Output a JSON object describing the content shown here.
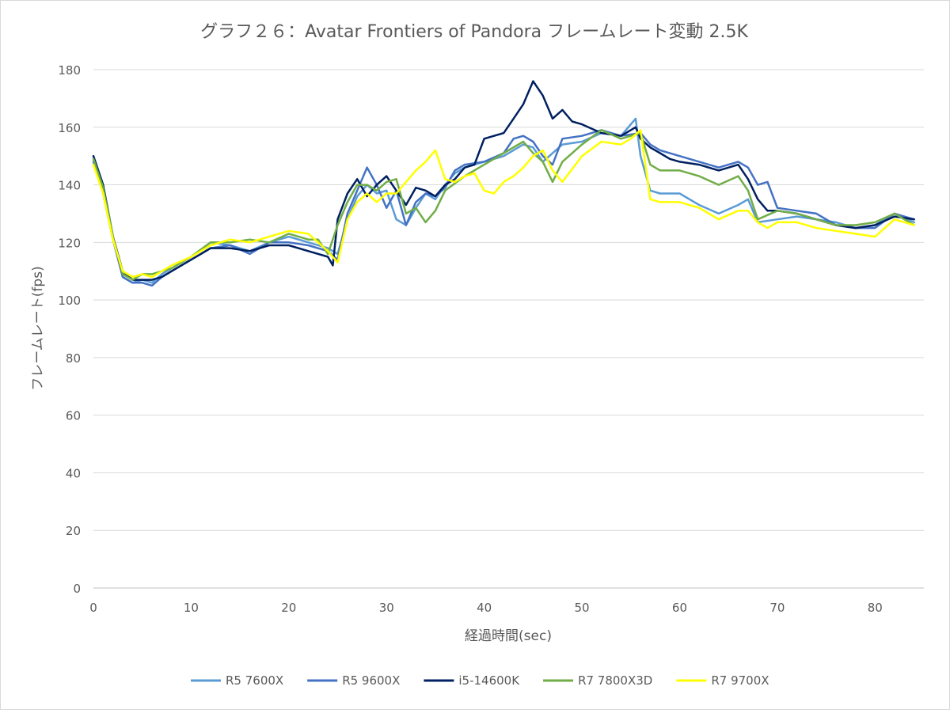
{
  "chart_data": {
    "type": "line",
    "title": "グラフ２６：Avatar Frontiers  of Pandora フレームレート変動 2.5K",
    "xlabel": "経過時間(sec)",
    "ylabel": "フレームレート(fps)",
    "xlim": [
      0,
      85
    ],
    "ylim": [
      0,
      180
    ],
    "x_ticks": [
      "0",
      "10",
      "20",
      "30",
      "40",
      "50",
      "60",
      "70",
      "80"
    ],
    "y_ticks": [
      "180",
      "160",
      "140",
      "120",
      "100",
      "80",
      "60",
      "40",
      "20",
      "0"
    ],
    "grid": true,
    "legend_position": "bottom",
    "series": [
      {
        "name": "R5 7600X",
        "color": "#5b9bd5",
        "x": [
          0,
          1,
          2,
          3,
          4,
          5,
          6,
          7,
          8,
          10,
          12,
          14,
          16,
          18,
          20,
          22,
          24,
          25,
          26,
          27,
          28,
          29,
          30,
          31,
          32,
          33,
          34,
          35,
          36,
          37,
          38,
          40,
          42,
          44,
          45,
          46,
          48,
          50,
          52,
          54,
          55.5,
          56,
          57,
          58,
          60,
          62,
          64,
          66,
          67,
          68,
          70,
          72,
          74,
          76,
          78,
          80,
          82,
          84
        ],
        "values": [
          149,
          138,
          122,
          108,
          106,
          107,
          106,
          109,
          111,
          115,
          120,
          119,
          117,
          120,
          122,
          120,
          118,
          116,
          128,
          136,
          140,
          137,
          138,
          128,
          126,
          132,
          137,
          135,
          140,
          144,
          146,
          148,
          150,
          154,
          153,
          148,
          154,
          155,
          158,
          157,
          163,
          150,
          138,
          137,
          137,
          133,
          130,
          133,
          135,
          127,
          128,
          129,
          128,
          127,
          125,
          126,
          130,
          127
        ]
      },
      {
        "name": "R5 9600X",
        "color": "#4472c4",
        "x": [
          0,
          1,
          2,
          3,
          4,
          5,
          6,
          7,
          8,
          10,
          12,
          14,
          16,
          18,
          20,
          22,
          24,
          25,
          26,
          27,
          28,
          29,
          30,
          31,
          32,
          33,
          34,
          35,
          36,
          37,
          38,
          40,
          42,
          43,
          44,
          45,
          46,
          47,
          48,
          50,
          52,
          54,
          56,
          57,
          58,
          60,
          62,
          64,
          66,
          67,
          68,
          69,
          70,
          72,
          74,
          76,
          78,
          80,
          82,
          84
        ],
        "values": [
          148,
          137,
          121,
          108,
          106,
          106,
          105,
          108,
          110,
          114,
          118,
          119,
          116,
          120,
          120,
          119,
          117,
          114,
          130,
          138,
          146,
          140,
          132,
          138,
          126,
          134,
          137,
          136,
          139,
          145,
          147,
          148,
          151,
          156,
          157,
          155,
          150,
          147,
          156,
          157,
          159,
          157,
          158,
          154,
          152,
          150,
          148,
          146,
          148,
          146,
          140,
          141,
          132,
          131,
          130,
          126,
          125,
          125,
          130,
          128
        ]
      },
      {
        "name": "i5-14600K",
        "color": "#002060",
        "x": [
          0,
          1,
          2,
          3,
          4,
          5,
          6,
          7,
          8,
          10,
          12,
          14,
          16,
          18,
          20,
          22,
          24,
          24.5,
          25,
          26,
          27,
          28,
          29,
          30,
          31,
          32,
          33,
          34,
          35,
          36,
          37,
          38,
          39,
          40,
          41,
          42,
          43,
          44,
          45,
          46,
          47,
          48,
          49,
          50,
          52,
          54,
          55.5,
          56,
          57,
          58,
          59,
          60,
          62,
          64,
          66,
          67,
          68,
          69,
          70,
          72,
          74,
          76,
          78,
          80,
          82,
          84
        ],
        "values": [
          150,
          140,
          122,
          110,
          107,
          107,
          107,
          108,
          110,
          114,
          118,
          118,
          117,
          119,
          119,
          117,
          115,
          112,
          128,
          137,
          142,
          136,
          140,
          143,
          138,
          133,
          139,
          138,
          136,
          140,
          142,
          146,
          147,
          156,
          157,
          158,
          163,
          168,
          176,
          171,
          163,
          166,
          162,
          161,
          158,
          157,
          160,
          156,
          153,
          151,
          149,
          148,
          147,
          145,
          147,
          142,
          135,
          131,
          131,
          130,
          128,
          126,
          125,
          126,
          129,
          128
        ]
      },
      {
        "name": "R7 7800X3D",
        "color": "#70ad47",
        "x": [
          0,
          1,
          2,
          3,
          4,
          5,
          6,
          7,
          8,
          10,
          12,
          14,
          16,
          18,
          20,
          22,
          23,
          24,
          25,
          26,
          27,
          28,
          29,
          30,
          31,
          32,
          33,
          34,
          35,
          36,
          38,
          40,
          42,
          44,
          45,
          46,
          47,
          48,
          50,
          52,
          54,
          56,
          57,
          58,
          60,
          62,
          64,
          66,
          67,
          68,
          70,
          72,
          74,
          76,
          78,
          80,
          82,
          84
        ],
        "values": [
          149,
          139,
          122,
          109,
          107,
          109,
          109,
          110,
          111,
          115,
          120,
          120,
          121,
          120,
          123,
          121,
          121,
          116,
          126,
          134,
          140,
          140,
          138,
          141,
          142,
          130,
          132,
          127,
          131,
          138,
          143,
          147,
          151,
          155,
          151,
          148,
          141,
          148,
          154,
          159,
          156,
          158,
          147,
          145,
          145,
          143,
          140,
          143,
          138,
          128,
          131,
          130,
          128,
          126,
          126,
          127,
          130,
          126
        ]
      },
      {
        "name": "R7 9700X",
        "color": "#ffff00",
        "x": [
          0,
          1,
          2,
          3,
          4,
          5,
          6,
          7,
          8,
          10,
          12,
          14,
          16,
          18,
          20,
          22,
          24,
          25,
          26,
          27,
          28,
          29,
          30,
          31,
          32,
          33,
          34,
          35,
          36,
          37,
          38,
          39,
          40,
          41,
          42,
          43,
          44,
          45,
          46,
          47,
          48,
          50,
          52,
          54,
          55,
          56,
          57,
          58,
          60,
          62,
          64,
          66,
          67,
          68,
          69,
          70,
          72,
          74,
          76,
          78,
          80,
          82,
          84
        ],
        "values": [
          147,
          137,
          121,
          110,
          108,
          109,
          108,
          110,
          112,
          115,
          119,
          121,
          120,
          122,
          124,
          123,
          117,
          113,
          128,
          134,
          137,
          134,
          137,
          137,
          141,
          145,
          148,
          152,
          142,
          141,
          143,
          144,
          138,
          137,
          141,
          143,
          146,
          150,
          152,
          145,
          141,
          150,
          155,
          154,
          156,
          159,
          135,
          134,
          134,
          132,
          128,
          131,
          131,
          127,
          125,
          127,
          127,
          125,
          124,
          123,
          122,
          128,
          126
        ]
      }
    ]
  }
}
